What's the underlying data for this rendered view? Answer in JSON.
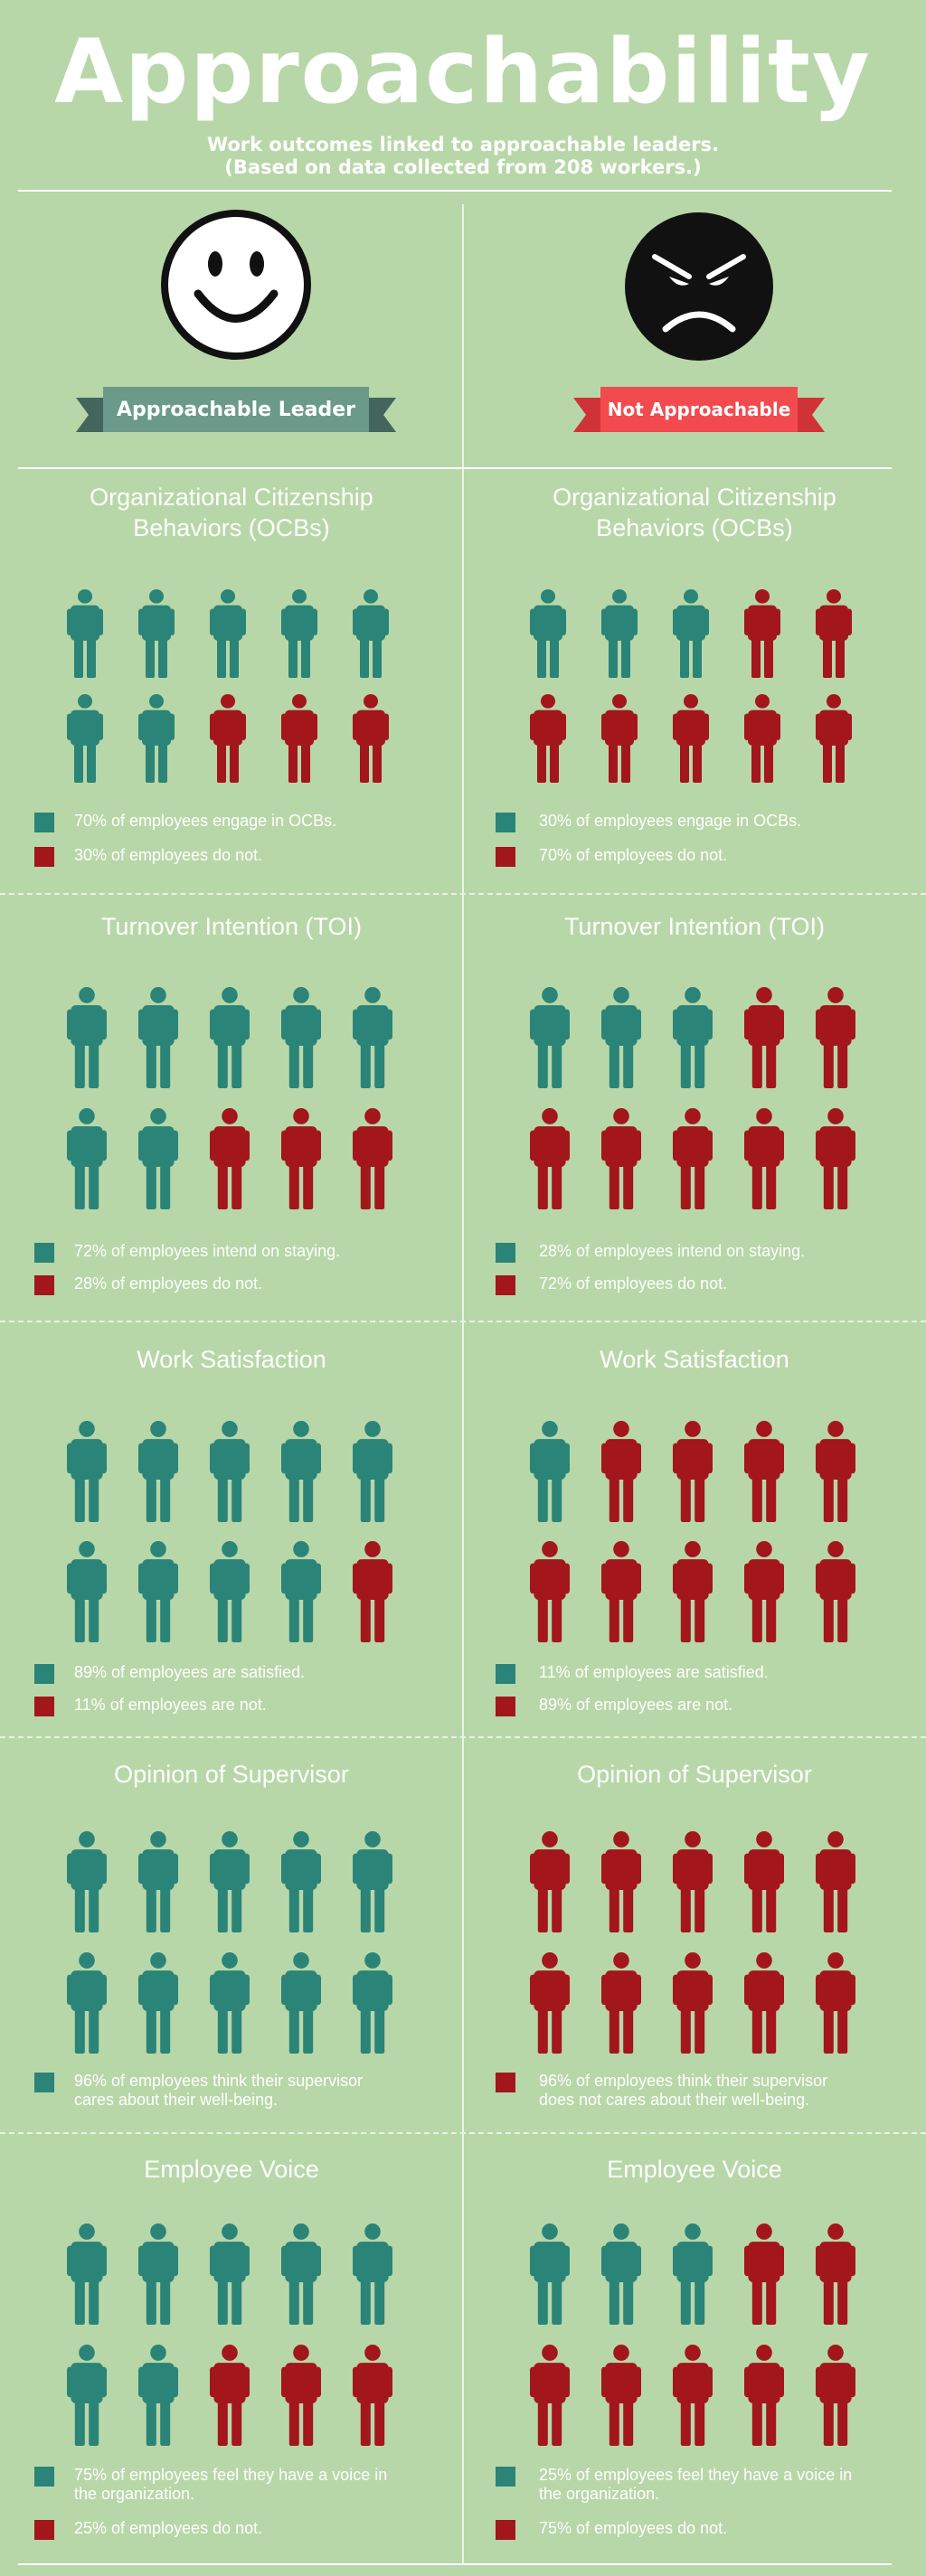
{
  "header": {
    "title": "Approachability",
    "subtitle_line1": "Work outcomes linked to approachable leaders.",
    "subtitle_line2": "(Based on data collected from 208 workers.)"
  },
  "colors": {
    "background": "#b8d7a8",
    "teal": "#2a8478",
    "red": "#a3161b",
    "ribbon_left": "#6b9a8a",
    "ribbon_left_tail": "#43655c",
    "ribbon_right": "#f24a4f",
    "ribbon_right_tail": "#cf3338"
  },
  "columns": [
    {
      "face_icon": "smiley-face-icon",
      "ribbon_label": "Approachable Leader",
      "sections": [
        {
          "title_lines": [
            "Organizational Citizenship",
            "Behaviors (OCBs)"
          ],
          "figures_teal": 7,
          "legend": [
            {
              "color": "teal",
              "lines": [
                "70% of employees engage in OCBs."
              ]
            },
            {
              "color": "red",
              "lines": [
                "30% of employees do not."
              ]
            }
          ]
        },
        {
          "title_lines": [
            "Turnover Intention (TOI)"
          ],
          "figures_teal": 7,
          "legend": [
            {
              "color": "teal",
              "lines": [
                "72% of employees intend on staying."
              ]
            },
            {
              "color": "red",
              "lines": [
                "28% of employees do not."
              ]
            }
          ]
        },
        {
          "title_lines": [
            "Work Satisfaction"
          ],
          "figures_teal": 9,
          "legend": [
            {
              "color": "teal",
              "lines": [
                "89% of employees are satisfied."
              ]
            },
            {
              "color": "red",
              "lines": [
                "11% of employees are not."
              ]
            }
          ]
        },
        {
          "title_lines": [
            "Opinion of Supervisor"
          ],
          "figures_teal": 10,
          "legend": [
            {
              "color": "teal",
              "lines": [
                "96% of employees think their supervisor",
                "cares about their well-being."
              ]
            }
          ]
        },
        {
          "title_lines": [
            "Employee Voice"
          ],
          "figures_teal": 7,
          "legend": [
            {
              "color": "teal",
              "lines": [
                "75% of employees feel they have a voice in",
                "the organization."
              ]
            },
            {
              "color": "red",
              "lines": [
                "25% of employees do not."
              ]
            }
          ]
        }
      ]
    },
    {
      "face_icon": "angry-face-icon",
      "ribbon_label": "Not Approachable",
      "sections": [
        {
          "title_lines": [
            "Organizational Citizenship",
            "Behaviors (OCBs)"
          ],
          "figures_teal": 3,
          "legend": [
            {
              "color": "teal",
              "lines": [
                "30% of employees engage in OCBs."
              ]
            },
            {
              "color": "red",
              "lines": [
                "70% of employees do not."
              ]
            }
          ]
        },
        {
          "title_lines": [
            "Turnover Intention (TOI)"
          ],
          "figures_teal": 3,
          "legend": [
            {
              "color": "teal",
              "lines": [
                "28% of employees intend on staying."
              ]
            },
            {
              "color": "red",
              "lines": [
                "72% of employees do not."
              ]
            }
          ]
        },
        {
          "title_lines": [
            "Work Satisfaction"
          ],
          "figures_teal": 1,
          "legend": [
            {
              "color": "teal",
              "lines": [
                "11% of employees are satisfied."
              ]
            },
            {
              "color": "red",
              "lines": [
                "89% of employees are not."
              ]
            }
          ]
        },
        {
          "title_lines": [
            "Opinion of Supervisor"
          ],
          "figures_teal": 0,
          "legend": [
            {
              "color": "red",
              "lines": [
                "96% of employees think their supervisor",
                "does not cares about their well-being."
              ]
            }
          ]
        },
        {
          "title_lines": [
            "Employee Voice"
          ],
          "figures_teal": 3,
          "legend": [
            {
              "color": "teal",
              "lines": [
                "25% of employees feel they have a voice in",
                "the organization."
              ]
            },
            {
              "color": "red",
              "lines": [
                "75% of employees do not."
              ]
            }
          ]
        }
      ]
    }
  ]
}
